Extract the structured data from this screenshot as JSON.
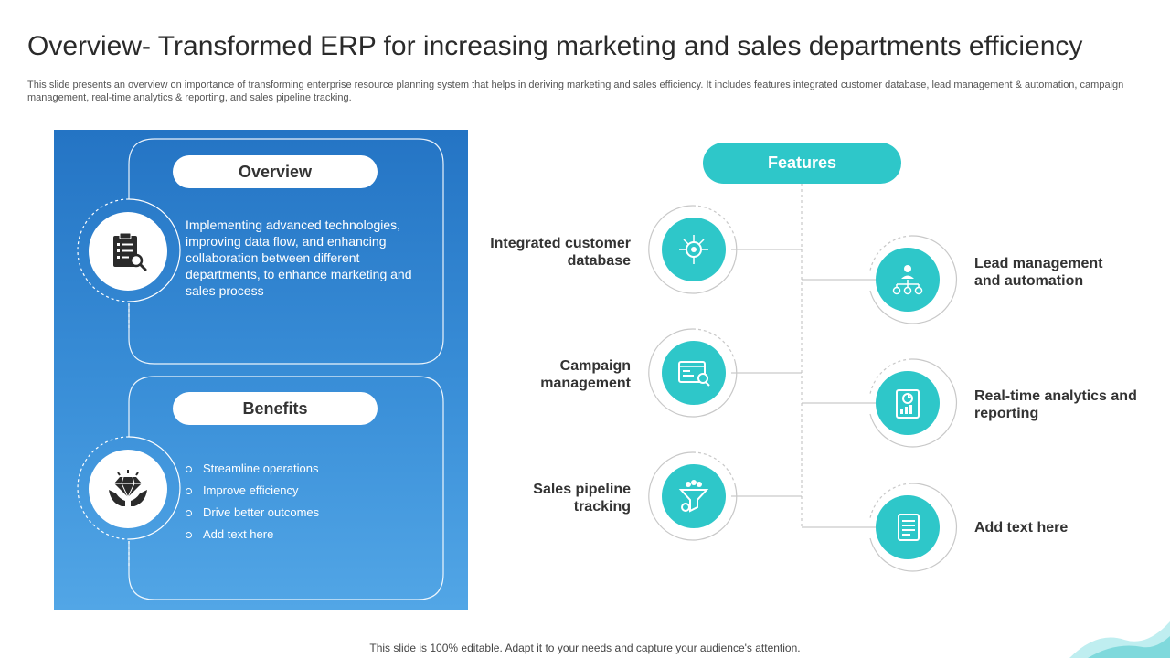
{
  "title": "Overview- Transformed ERP for increasing marketing and sales departments efficiency",
  "subtitle": "This slide presents an overview on importance of transforming enterprise resource planning system that helps in deriving marketing and sales efficiency. It includes features integrated customer database, lead management & automation, campaign management, real-time analytics & reporting, and sales pipeline tracking.",
  "overview": {
    "heading": "Overview",
    "icon": "clipboard-magnifier-icon",
    "text": "Implementing advanced technologies, improving data flow, and enhancing collaboration between different departments, to enhance marketing and sales process"
  },
  "benefits": {
    "heading": "Benefits",
    "icon": "diamond-hands-icon",
    "items": [
      "Streamline operations",
      "Improve  efficiency",
      "Drive  better outcomes",
      "Add text here"
    ]
  },
  "features": {
    "heading": "Features",
    "left": [
      {
        "label": "Integrated customer database",
        "icon": "database-chip-icon"
      },
      {
        "label": "Campaign management",
        "icon": "campaign-screen-icon"
      },
      {
        "label": "Sales pipeline tracking",
        "icon": "funnel-gear-icon"
      }
    ],
    "right": [
      {
        "label": "Lead management and automation",
        "icon": "org-gears-icon"
      },
      {
        "label": "Real-time analytics and reporting",
        "icon": "analytics-report-icon"
      },
      {
        "label": "Add text here",
        "icon": "document-icon"
      }
    ]
  },
  "footer": "This slide is 100% editable. Adapt it to your needs and capture your audience's attention.",
  "colors": {
    "accent": "#2ec7c9",
    "panel_top": "#2474c4",
    "panel_bottom": "#52a6e6"
  }
}
